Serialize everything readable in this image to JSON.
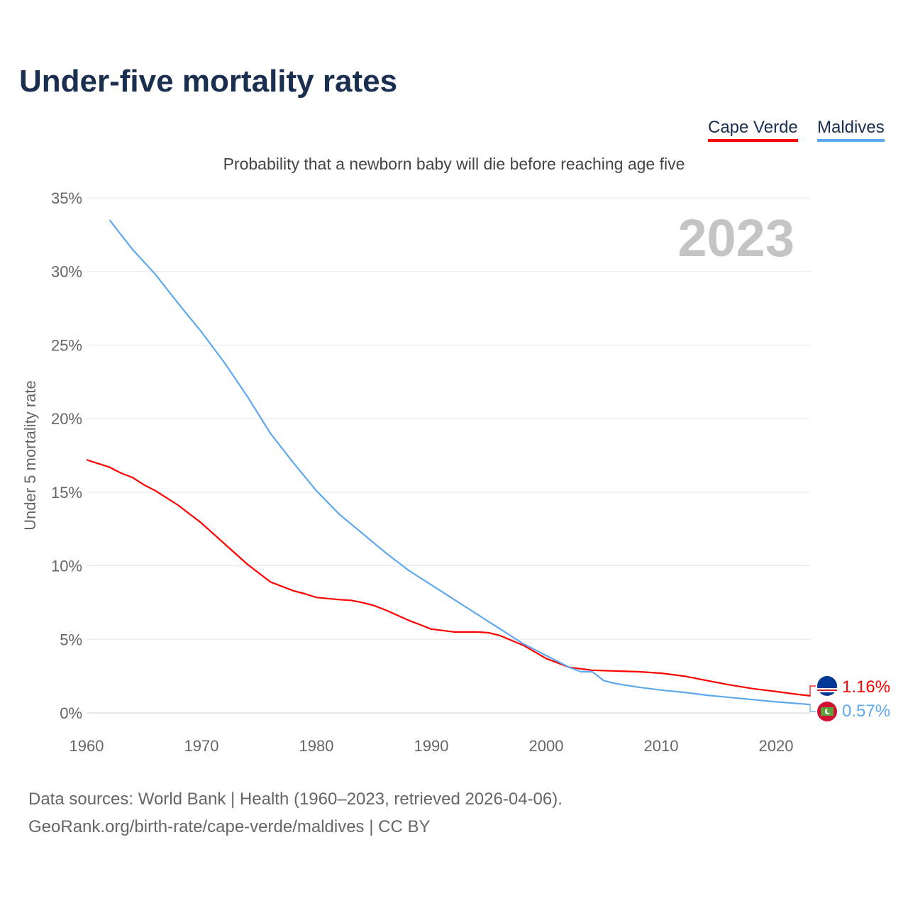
{
  "title": "Under-five mortality rates",
  "subtitle": "Probability that a newborn baby will die before reaching age five",
  "source_line1": "Data sources: World Bank | Health (1960–2023, retrieved 2026-04-06).",
  "source_line2": "GeoRank.org/birth-rate/cape-verde/maldives | CC BY",
  "chart_data": {
    "type": "line",
    "title": "Under-five mortality rates",
    "xlabel": "",
    "ylabel": "Under 5 mortality rate",
    "xlim": [
      1960,
      2023
    ],
    "ylim": [
      0,
      35
    ],
    "xticks": [
      "1960",
      "1970",
      "1980",
      "1990",
      "2000",
      "2010",
      "2020"
    ],
    "yticks": [
      "0%",
      "5%",
      "10%",
      "15%",
      "20%",
      "25%",
      "30%",
      "35%"
    ],
    "year_label": "2023",
    "legend_position": "top-right",
    "grid": true,
    "series": [
      {
        "name": "Cape Verde",
        "color": "#ff0000",
        "end_label": "1.16%",
        "flag": "cape-verde-flag",
        "x": [
          1960,
          1962,
          1963,
          1964,
          1965,
          1966,
          1968,
          1970,
          1971,
          1972,
          1974,
          1976,
          1978,
          1979,
          1980,
          1982,
          1983,
          1984,
          1985,
          1986,
          1988,
          1989,
          1990,
          1991,
          1992,
          1994,
          1995,
          1996,
          1998,
          2000,
          2002,
          2004,
          2006,
          2008,
          2010,
          2012,
          2014,
          2016,
          2018,
          2020,
          2022,
          2023
        ],
        "y": [
          17.2,
          16.7,
          16.3,
          16.0,
          15.5,
          15.1,
          14.1,
          12.9,
          12.2,
          11.5,
          10.1,
          8.9,
          8.3,
          8.1,
          7.85,
          7.7,
          7.65,
          7.5,
          7.3,
          7.0,
          6.3,
          6.0,
          5.7,
          5.6,
          5.5,
          5.5,
          5.45,
          5.25,
          4.6,
          3.7,
          3.1,
          2.9,
          2.85,
          2.8,
          2.7,
          2.5,
          2.2,
          1.9,
          1.65,
          1.45,
          1.25,
          1.16
        ]
      },
      {
        "name": "Maldives",
        "color": "#5ea8ee",
        "end_label": "0.57%",
        "flag": "maldives-flag",
        "x": [
          1962,
          1963,
          1964,
          1966,
          1968,
          1970,
          1972,
          1974,
          1976,
          1978,
          1980,
          1982,
          1984,
          1986,
          1988,
          1990,
          1992,
          1994,
          1996,
          1998,
          2000,
          2002,
          2003,
          2004,
          2005,
          2006,
          2008,
          2010,
          2012,
          2014,
          2016,
          2018,
          2020,
          2023
        ],
        "y": [
          33.5,
          32.5,
          31.5,
          29.8,
          27.8,
          25.9,
          23.8,
          21.5,
          19.0,
          17.0,
          15.1,
          13.5,
          12.2,
          10.9,
          9.7,
          8.7,
          7.7,
          6.7,
          5.7,
          4.7,
          3.9,
          3.1,
          2.8,
          2.8,
          2.2,
          2.0,
          1.75,
          1.55,
          1.4,
          1.2,
          1.05,
          0.9,
          0.75,
          0.57
        ]
      }
    ]
  }
}
